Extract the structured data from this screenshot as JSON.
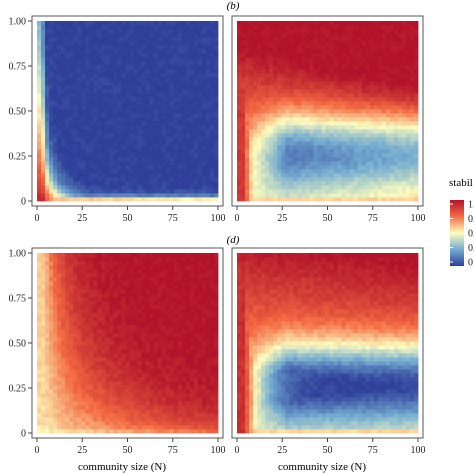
{
  "figure": {
    "panel_labels": [
      "(b)",
      "(d)"
    ],
    "legend": {
      "title": "stabil",
      "tick_labels": [
        "1.",
        "0.",
        "0.",
        "0.",
        "0"
      ],
      "colors": [
        "#2f3f9a",
        "#74acd1",
        "#fefdbe",
        "#f46b43",
        "#b2132a"
      ]
    }
  },
  "chart_data": [
    {
      "type": "heatmap",
      "panel": "top-left",
      "title": "",
      "xlabel": "",
      "ylabel": "",
      "x_ticks": [
        "0",
        "25",
        "50",
        "75",
        "100"
      ],
      "y_ticks": [
        "0",
        "0.25",
        "0.50",
        "0.75",
        "1.00"
      ],
      "xlim": [
        0,
        100
      ],
      "ylim": [
        0,
        1
      ],
      "z_range": [
        0,
        1
      ],
      "pattern": "stability near 1 only for very small community size or near-zero y; blue (0) elsewhere",
      "params": {
        "k": 0.15,
        "cx": 1.8,
        "cy": 0.02,
        "power": 1.3,
        "gain": 2.8,
        "offset": 0.02
      }
    },
    {
      "type": "heatmap",
      "panel": "top-right",
      "title": "",
      "xlabel": "",
      "ylabel": "",
      "x_ticks": [
        "0",
        "25",
        "50",
        "75",
        "100"
      ],
      "y_ticks": [],
      "xlim": [
        0,
        100
      ],
      "ylim": [
        0,
        1
      ],
      "z_range": [
        0,
        1
      ],
      "pattern": "high stability at small N and at high y; low band around y 0.1-0.4 for large N",
      "params": {
        "k": 4.0,
        "cx": 3.0,
        "cy": 0.03,
        "power": 1.1,
        "gain": 0.75,
        "offset": 0.15,
        "rise": 1.1
      }
    },
    {
      "type": "heatmap",
      "panel": "bottom-left",
      "title": "",
      "xlabel": "community size (N)",
      "ylabel": "",
      "x_ticks": [
        "0",
        "25",
        "50",
        "75",
        "100"
      ],
      "y_ticks": [
        "0",
        "0.25",
        "0.50",
        "0.75",
        "1.00"
      ],
      "xlim": [
        0,
        100
      ],
      "ylim": [
        0,
        1
      ],
      "z_range": [
        0,
        1
      ],
      "pattern": "stability mostly high (red); yellow-orange for small N and low y",
      "params": {
        "k": 3.0,
        "cx": 3.0,
        "cy": 0.02,
        "power": 1.0,
        "gain": 0.6,
        "offset": 0.0,
        "floor": 0.55
      }
    },
    {
      "type": "heatmap",
      "panel": "bottom-right",
      "title": "",
      "xlabel": "community size (N)",
      "ylabel": "",
      "x_ticks": [
        "0",
        "25",
        "50",
        "75",
        "100"
      ],
      "y_ticks": [],
      "xlim": [
        0,
        100
      ],
      "ylim": [
        0,
        1
      ],
      "z_range": [
        0,
        1
      ],
      "pattern": "blue low-stability region for moderate N and low y; red at small N and near y=0",
      "params": {
        "k": 2.2,
        "cx": 3.0,
        "cy": 0.03,
        "power": 1.2,
        "gain": 0.85,
        "offset": 0.05,
        "rise": 0.8
      }
    }
  ]
}
